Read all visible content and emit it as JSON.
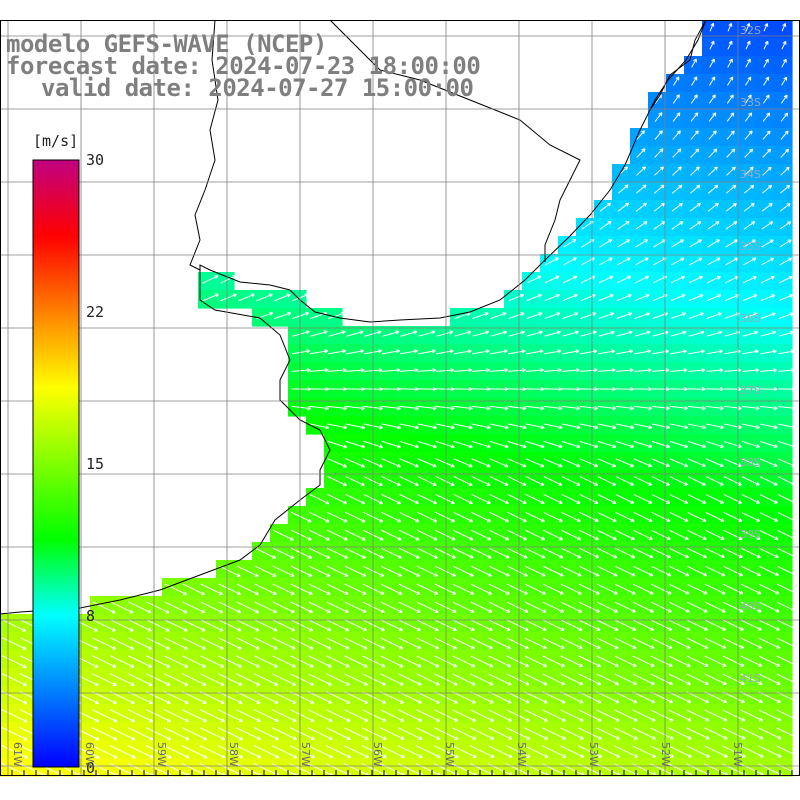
{
  "title": {
    "line1": "modelo GEFS-WAVE (NCEP)",
    "line2": "forecast date: 2024-07-23 18:00:00",
    "line3": "valid date: 2024-07-27 15:00:00"
  },
  "colorbar": {
    "unit": "[m/s]",
    "min": 0,
    "max": 30,
    "ticks": [
      "30",
      "22",
      "15",
      "8",
      "0"
    ],
    "tick_values": [
      30,
      22,
      15,
      8,
      0
    ],
    "colors": [
      "#0000ff",
      "#0080ff",
      "#00ffff",
      "#00ff00",
      "#80ff00",
      "#ffff00",
      "#ff8000",
      "#ff0000",
      "#c00080"
    ]
  },
  "latitude_labels": [
    "32S",
    "33S",
    "34S",
    "35S",
    "36S",
    "37S",
    "38S",
    "39S",
    "40S",
    "41S"
  ],
  "longitude_labels": [
    "61W",
    "60W",
    "59W",
    "58W",
    "57W",
    "56W",
    "55W",
    "54W",
    "53W",
    "52W",
    "51W"
  ],
  "map": {
    "region": "southern Brazil / Uruguay / Rio de la Plata",
    "field": "10m wind speed",
    "ocean_mask_color": "#ffffff",
    "grid_color": "#808080"
  }
}
